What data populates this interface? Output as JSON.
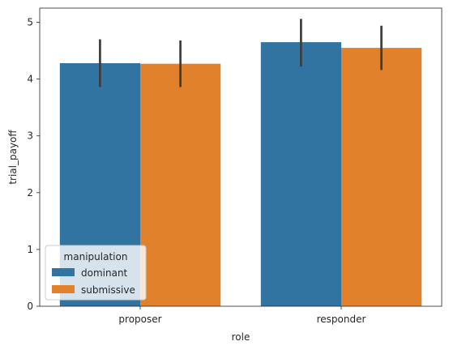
{
  "chart_data": {
    "type": "bar",
    "xlabel": "role",
    "ylabel": "trial_payoff",
    "ylim": [
      0,
      5.25
    ],
    "yticks": [
      0,
      1,
      2,
      3,
      4,
      5
    ],
    "categories": [
      "proposer",
      "responder"
    ],
    "series": [
      {
        "name": "dominant",
        "color": "#3274a1",
        "values": [
          4.28,
          4.65
        ],
        "ci_low": [
          3.86,
          4.22
        ],
        "ci_high": [
          4.7,
          5.06
        ]
      },
      {
        "name": "submissive",
        "color": "#e1812c",
        "values": [
          4.27,
          4.55
        ],
        "ci_low": [
          3.86,
          4.16
        ],
        "ci_high": [
          4.68,
          4.94
        ]
      }
    ],
    "legend": {
      "title": "manipulation",
      "position": "lower-left"
    },
    "errorbar_color": "#3d3d3d",
    "grid": false
  }
}
